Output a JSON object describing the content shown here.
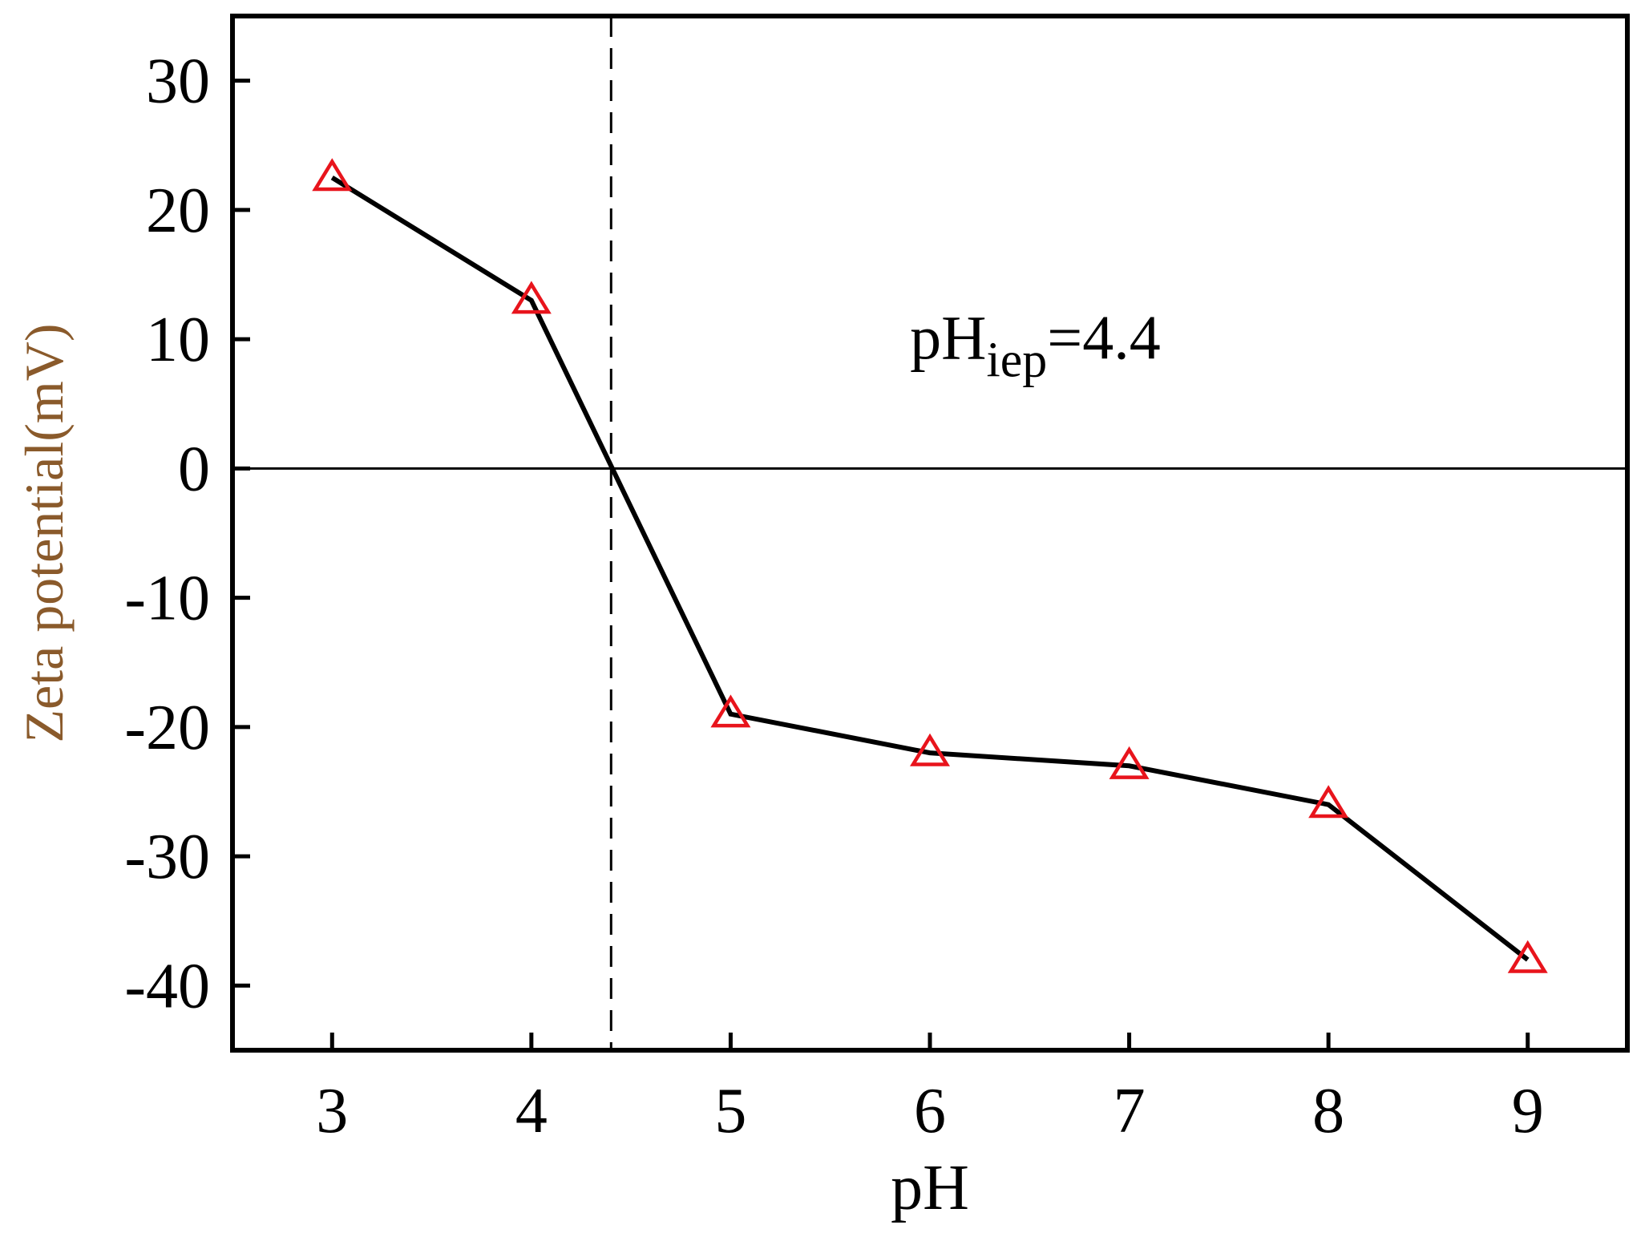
{
  "chart_data": {
    "type": "line",
    "title": "",
    "xlabel": "pH",
    "ylabel": "Zeta potential(mV)",
    "xlim": [
      2.5,
      9.5
    ],
    "ylim": [
      -45,
      35
    ],
    "xticks": [
      3,
      4,
      5,
      6,
      7,
      8,
      9
    ],
    "yticks": [
      30,
      20,
      10,
      0,
      -10,
      -20,
      -30,
      -40
    ],
    "grid": false,
    "legend": "none",
    "series": [
      {
        "x": [
          3,
          4,
          5,
          6,
          7,
          8,
          9
        ],
        "y": [
          22.5,
          13,
          -19,
          -22,
          -23,
          -26,
          -38
        ],
        "marker": "open-triangle",
        "marker_color": "#e8141c",
        "line_color": "#000000"
      }
    ],
    "reference_lines": [
      {
        "axis": "y",
        "value": 0,
        "style": "solid"
      },
      {
        "axis": "x",
        "value": 4.4,
        "style": "dashed"
      }
    ],
    "annotation": {
      "base": "pH",
      "subscript": "iep",
      "suffix": "=4.4",
      "x": 5.9,
      "y": 8.5
    },
    "ylabel_color": "#8a5a2b"
  }
}
